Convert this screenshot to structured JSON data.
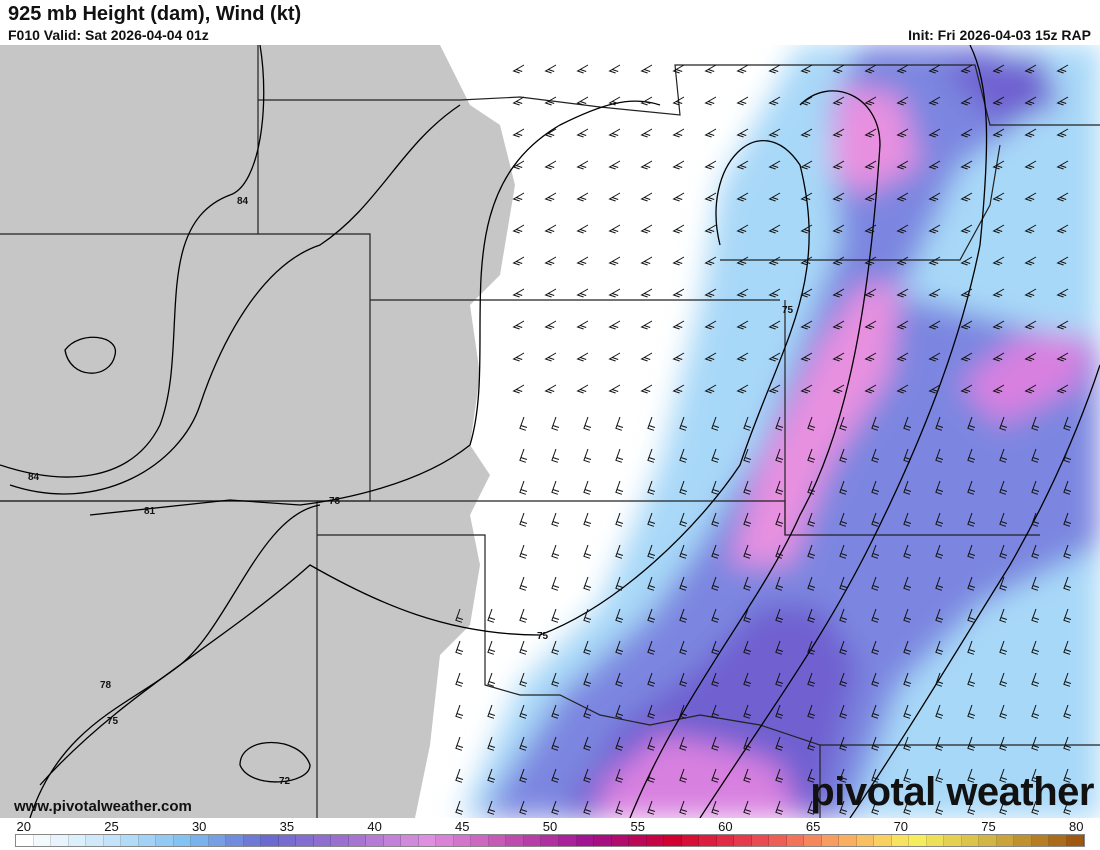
{
  "header": {
    "title": "925 mb Height (dam), Wind (kt)",
    "valid": "F010 Valid: Sat 2026-04-04 01z",
    "init": "Init: Fri 2026-04-03 15z RAP"
  },
  "branding": {
    "website": "www.pivotalweather.com",
    "logo": "pivotal weather"
  },
  "contours": {
    "labels": [
      "84",
      "84",
      "81",
      "78",
      "78",
      "75",
      "75",
      "75",
      "72"
    ]
  },
  "colorbar": {
    "ticks": [
      "20",
      "25",
      "30",
      "35",
      "40",
      "45",
      "50",
      "55",
      "60",
      "65",
      "70",
      "75",
      "80"
    ],
    "min": 20,
    "max": 80,
    "stops": [
      "#ffffff",
      "#c8e6fa",
      "#7fc0f0",
      "#6a6ad0",
      "#a070d0",
      "#e090e0",
      "#c050b0",
      "#a01090",
      "#d00030",
      "#e84050",
      "#f8a060",
      "#f8f060",
      "#d0b040",
      "#a05810"
    ]
  }
}
